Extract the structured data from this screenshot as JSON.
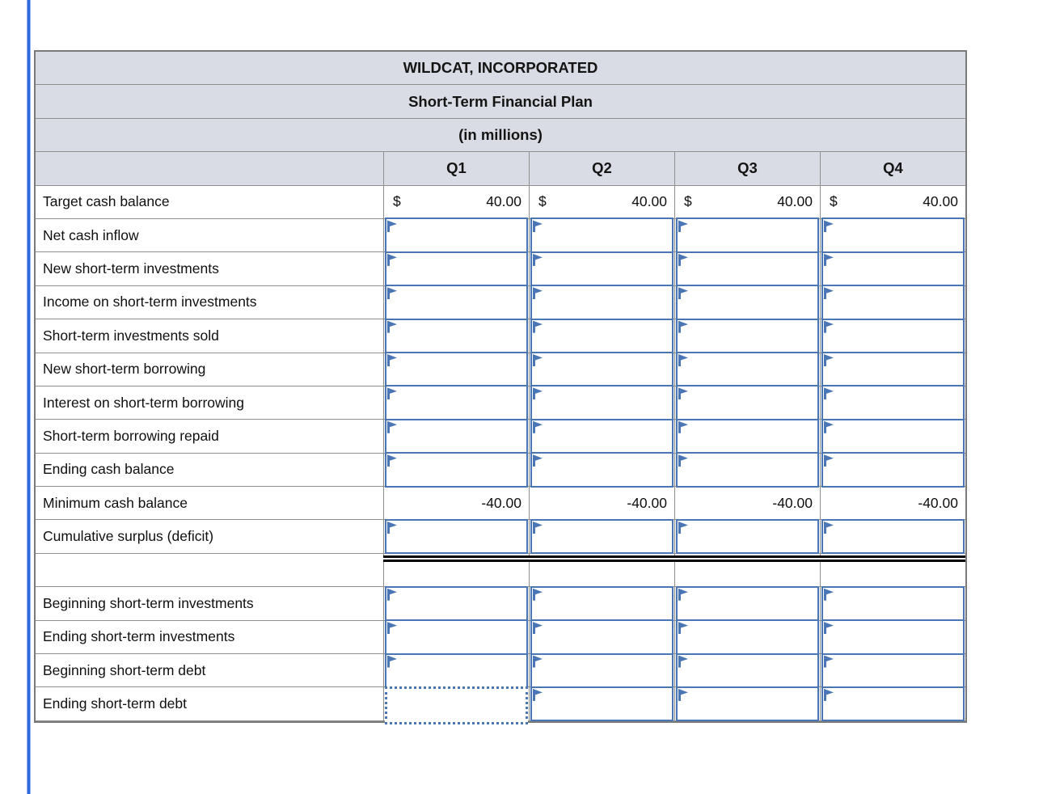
{
  "table": {
    "titles": [
      "WILDCAT, INCORPORATED",
      "Short-Term Financial Plan",
      "(in millions)"
    ],
    "columns": [
      "Q1",
      "Q2",
      "Q3",
      "Q4"
    ],
    "rows": [
      {
        "label": "Target cash balance",
        "type": "currency",
        "cells": [
          {
            "sym": "$",
            "val": "40.00"
          },
          {
            "sym": "$",
            "val": "40.00"
          },
          {
            "sym": "$",
            "val": "40.00"
          },
          {
            "sym": "$",
            "val": "40.00"
          }
        ]
      },
      {
        "label": "Net cash inflow",
        "type": "input"
      },
      {
        "label": "New short-term investments",
        "type": "input"
      },
      {
        "label": "Income on short-term investments",
        "type": "input"
      },
      {
        "label": "Short-term investments sold",
        "type": "input"
      },
      {
        "label": "New short-term borrowing",
        "type": "input"
      },
      {
        "label": "Interest on short-term borrowing",
        "type": "input"
      },
      {
        "label": "Short-term borrowing repaid",
        "type": "input"
      },
      {
        "label": "Ending cash balance",
        "type": "input"
      },
      {
        "label": "Minimum cash balance",
        "type": "number",
        "cells": [
          "-40.00",
          "-40.00",
          "-40.00",
          "-40.00"
        ]
      },
      {
        "label": "Cumulative surplus (deficit)",
        "type": "input"
      },
      {
        "label": "",
        "type": "blank",
        "double_rule": true
      },
      {
        "label": "Beginning short-term investments",
        "type": "input"
      },
      {
        "label": "Ending short-term investments",
        "type": "input"
      },
      {
        "label": "Beginning short-term debt",
        "type": "input"
      },
      {
        "label": "Ending short-term debt",
        "type": "input",
        "selected_cell": 0
      }
    ]
  },
  "colors": {
    "accent_blue": "#4a76b5",
    "header_bg": "#d9dce4",
    "grid_gray": "#8f8f8f",
    "outer_border_gray": "#7a7a7a",
    "left_rule_blue": "#2e6bdf",
    "double_rule_black": "#000000"
  }
}
